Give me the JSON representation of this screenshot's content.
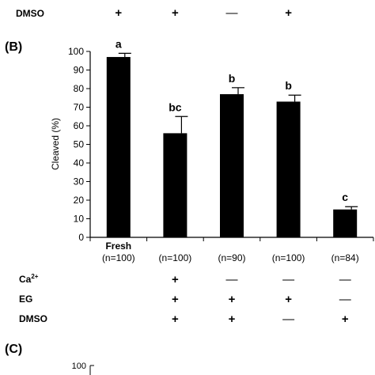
{
  "top_row": {
    "label": "DMSO",
    "signs": [
      "+",
      "+",
      "—",
      "+"
    ]
  },
  "panel_b": {
    "label": "(B)",
    "chart_data": {
      "type": "bar",
      "ylabel": "Cleaved (%)",
      "ylim": [
        0,
        100
      ],
      "yticks": [
        0,
        10,
        20,
        30,
        40,
        50,
        60,
        70,
        80,
        90,
        100
      ],
      "categories": [
        {
          "name": "Fresh",
          "n": "(n=100)"
        },
        {
          "name": "",
          "n": "(n=100)"
        },
        {
          "name": "",
          "n": "(n=90)"
        },
        {
          "name": "",
          "n": "(n=100)"
        },
        {
          "name": "",
          "n": "(n=84)"
        }
      ],
      "values": [
        97,
        56,
        77,
        73,
        15
      ],
      "errors": [
        2,
        9,
        3.5,
        3.5,
        1.5
      ],
      "letters": [
        "a",
        "bc",
        "b",
        "b",
        "c"
      ],
      "bar_color": "#000000"
    },
    "treatments": [
      {
        "label": "Ca",
        "sup": "2+",
        "signs": [
          "",
          "+",
          "—",
          "—",
          "—"
        ]
      },
      {
        "label": "EG",
        "sup": "",
        "signs": [
          "",
          "+",
          "+",
          "+",
          "—"
        ]
      },
      {
        "label": "DMSO",
        "sup": "",
        "signs": [
          "",
          "+",
          "+",
          "—",
          "+"
        ]
      }
    ]
  },
  "panel_c": {
    "label": "(C)",
    "ytick_top": "100"
  }
}
